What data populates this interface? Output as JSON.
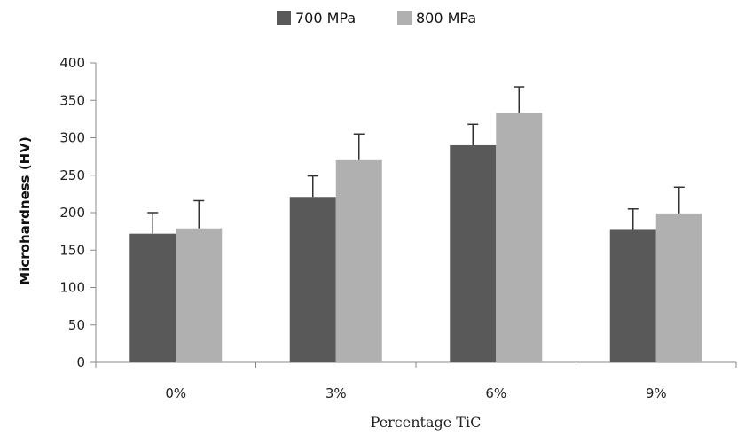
{
  "chart_data": {
    "type": "bar",
    "title": "",
    "categories": [
      "0%",
      "3%",
      "6%",
      "9%"
    ],
    "series": [
      {
        "name": "700  MPa",
        "color": "#595959",
        "values": [
          172,
          221,
          290,
          177
        ],
        "errors": [
          28,
          28,
          28,
          28
        ]
      },
      {
        "name": "800 MPa",
        "color": "#b0b0b0",
        "values": [
          179,
          270,
          333,
          199
        ],
        "errors": [
          37,
          35,
          35,
          35
        ]
      }
    ],
    "xlabel": "Percentage TiC",
    "ylabel": "Microhardness   (HV)",
    "ylim": [
      0,
      400
    ],
    "yticks": [
      0,
      50,
      100,
      150,
      200,
      250,
      300,
      350,
      400
    ],
    "grid": false,
    "legend_position": "top-center"
  }
}
